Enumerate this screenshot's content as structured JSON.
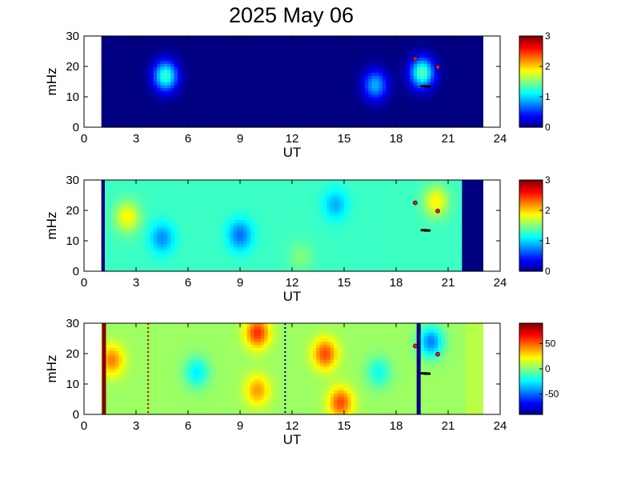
{
  "title": "2025 May 06",
  "colors": {
    "background_panel": "#00008f",
    "marker_red": "#e31a1c",
    "marker_black": "#000000",
    "frame": "#000000"
  },
  "chart_data": [
    {
      "type": "heatmap",
      "xlabel": "UT",
      "ylabel": "mHz",
      "xlim": [
        0,
        24
      ],
      "ylim": [
        0,
        30
      ],
      "x_ticks": [
        "0",
        "3",
        "6",
        "9",
        "12",
        "15",
        "18",
        "21",
        "24"
      ],
      "y_ticks": [
        "0",
        "10",
        "20",
        "30"
      ],
      "data_x_range": [
        1,
        23
      ],
      "colorbar": {
        "range": [
          0,
          3
        ],
        "ticks": [
          "0",
          "1",
          "2",
          "3"
        ],
        "colormap": "jet"
      },
      "features": [
        {
          "ut": 4.7,
          "mhz": 17,
          "value": 1.3
        },
        {
          "ut": 16.8,
          "mhz": 14,
          "value": 0.9
        },
        {
          "ut": 19.5,
          "mhz": 18,
          "value": 1.4
        }
      ],
      "markers_red": [
        {
          "ut": 19.1,
          "mhz": 22.5
        },
        {
          "ut": 20.4,
          "mhz": 19.8
        }
      ],
      "markers_black": [
        {
          "ut": 19.6,
          "mhz": 13.5
        },
        {
          "ut": 19.8,
          "mhz": 13.4
        }
      ]
    },
    {
      "type": "heatmap",
      "xlabel": "UT",
      "ylabel": "mHz",
      "xlim": [
        0,
        24
      ],
      "ylim": [
        0,
        30
      ],
      "x_ticks": [
        "0",
        "3",
        "6",
        "9",
        "12",
        "15",
        "18",
        "21",
        "24"
      ],
      "y_ticks": [
        "0",
        "10",
        "20",
        "30"
      ],
      "data_x_range": [
        1,
        23
      ],
      "colorbar": {
        "range": [
          0,
          3
        ],
        "ticks": [
          "0",
          "1",
          "2",
          "3"
        ],
        "colormap": "jet"
      },
      "baseline": 1.3,
      "features": [
        {
          "ut": 2.5,
          "mhz": 18,
          "value": 1.9
        },
        {
          "ut": 4.5,
          "mhz": 11,
          "value": 0.8
        },
        {
          "ut": 9,
          "mhz": 12,
          "value": 0.7
        },
        {
          "ut": 14.5,
          "mhz": 22,
          "value": 0.9
        },
        {
          "ut": 20.3,
          "mhz": 23,
          "value": 1.9
        },
        {
          "ut": 12.5,
          "mhz": 5,
          "value": 1.5
        }
      ],
      "band_low": [
        {
          "from": 1,
          "to": 1.1,
          "value": 0
        },
        {
          "from": 21.9,
          "to": 23,
          "value": 0
        }
      ],
      "markers_red": [
        {
          "ut": 19.1,
          "mhz": 22.5
        },
        {
          "ut": 20.4,
          "mhz": 19.8
        }
      ],
      "markers_black": [
        {
          "ut": 19.6,
          "mhz": 13.5
        },
        {
          "ut": 19.8,
          "mhz": 13.4
        }
      ]
    },
    {
      "type": "heatmap",
      "xlabel": "UT",
      "ylabel": "mHz",
      "xlim": [
        0,
        24
      ],
      "ylim": [
        0,
        30
      ],
      "x_ticks": [
        "0",
        "3",
        "6",
        "9",
        "12",
        "15",
        "18",
        "21",
        "24"
      ],
      "y_ticks": [
        "0",
        "10",
        "20",
        "30"
      ],
      "data_x_range": [
        1,
        23
      ],
      "colorbar": {
        "range": [
          -90,
          90
        ],
        "ticks": [
          "50",
          "0",
          "-50"
        ],
        "tick_values": [
          50,
          0,
          -50
        ],
        "colormap": "jet"
      },
      "baseline": 5,
      "features": [
        {
          "ut": 1.6,
          "mhz": 18,
          "value": 45
        },
        {
          "ut": 10,
          "mhz": 27,
          "value": 60
        },
        {
          "ut": 10,
          "mhz": 8,
          "value": 40
        },
        {
          "ut": 13.9,
          "mhz": 20,
          "value": 55
        },
        {
          "ut": 14.8,
          "mhz": 4,
          "value": 55
        },
        {
          "ut": 6.5,
          "mhz": 14,
          "value": -25
        },
        {
          "ut": 17,
          "mhz": 14,
          "value": -20
        },
        {
          "ut": 20,
          "mhz": 24,
          "value": -45
        }
      ],
      "vertical_lines": [
        {
          "ut": 1.15,
          "value": 90,
          "style": "solid"
        },
        {
          "ut": 19.3,
          "value": -90,
          "style": "solid"
        },
        {
          "ut": 3.7,
          "style": "dotted-red"
        },
        {
          "ut": 11.6,
          "style": "dotted-blue"
        }
      ],
      "band_flat": [
        {
          "from": 22,
          "to": 23,
          "value": 10
        }
      ],
      "markers_red": [
        {
          "ut": 19.1,
          "mhz": 22.5
        },
        {
          "ut": 20.4,
          "mhz": 19.8
        }
      ],
      "markers_black": [
        {
          "ut": 19.6,
          "mhz": 13.5
        },
        {
          "ut": 19.8,
          "mhz": 13.4
        }
      ]
    }
  ]
}
